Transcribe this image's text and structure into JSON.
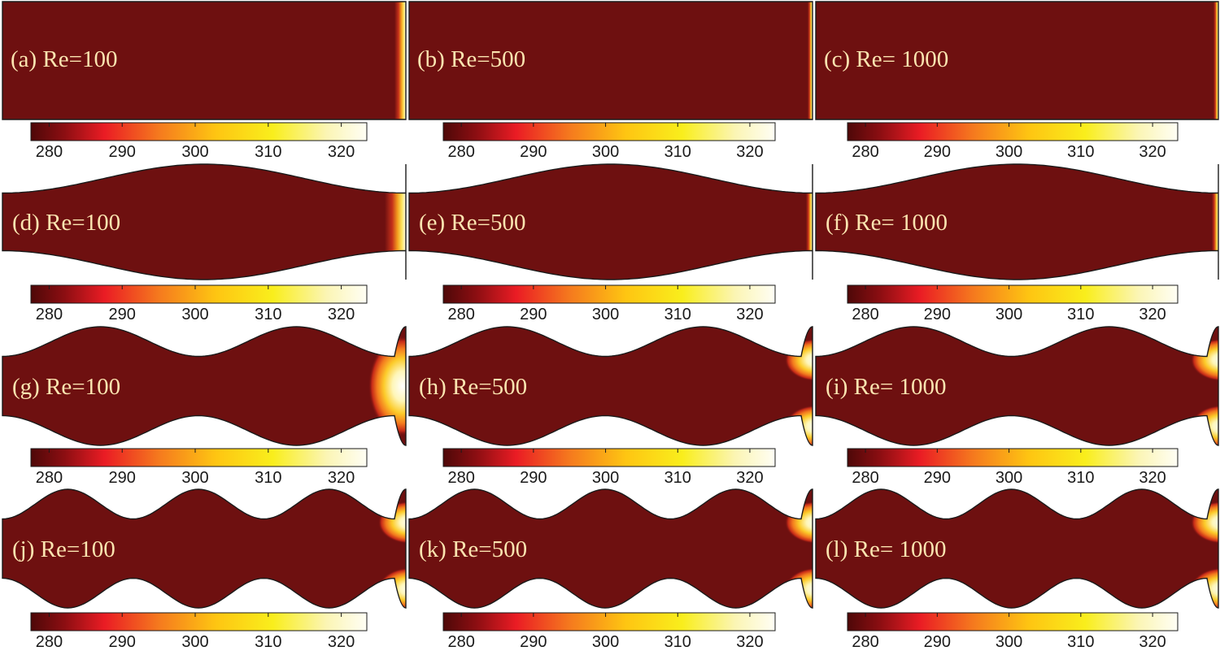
{
  "field_color": "#6e1010",
  "outline_color": "#1a1a1a",
  "colormap": {
    "stops": [
      {
        "t": 0.0,
        "color": "#4e0808"
      },
      {
        "t": 0.1,
        "color": "#8c0e12"
      },
      {
        "t": 0.22,
        "color": "#ea1c24"
      },
      {
        "t": 0.38,
        "color": "#f5791e"
      },
      {
        "t": 0.55,
        "color": "#fec512"
      },
      {
        "t": 0.72,
        "color": "#f9ee1c"
      },
      {
        "t": 0.88,
        "color": "#fbf5b4"
      },
      {
        "t": 1.0,
        "color": "#fffef5"
      }
    ]
  },
  "colorbar_ticks": [
    "280",
    "290",
    "300",
    "310",
    "320"
  ],
  "panels": [
    {
      "id": "a",
      "label": "(a) Re=100",
      "waves": 0
    },
    {
      "id": "b",
      "label": "(b) Re=500",
      "waves": 0
    },
    {
      "id": "c",
      "label": "(c) Re= 1000",
      "waves": 0
    },
    {
      "id": "d",
      "label": "(d) Re=100",
      "waves": 2
    },
    {
      "id": "e",
      "label": "(e) Re=500",
      "waves": 2
    },
    {
      "id": "f",
      "label": "(f) Re= 1000",
      "waves": 2
    },
    {
      "id": "g",
      "label": "(g) Re=100",
      "waves": 4
    },
    {
      "id": "h",
      "label": "(h) Re=500",
      "waves": 4
    },
    {
      "id": "i",
      "label": "(i) Re= 1000",
      "waves": 4
    },
    {
      "id": "j",
      "label": "(j) Re=100",
      "waves": 6
    },
    {
      "id": "k",
      "label": "(k) Re=500",
      "waves": 6
    },
    {
      "id": "l",
      "label": "(l) Re= 1000",
      "waves": 6
    }
  ]
}
